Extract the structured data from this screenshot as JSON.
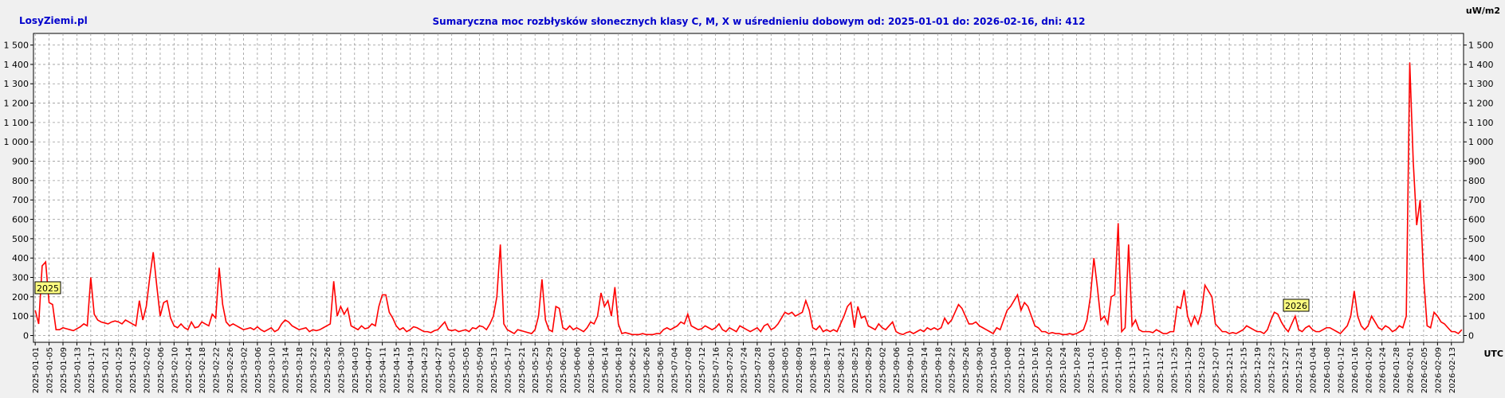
{
  "site": "LosyZiemi.pl",
  "chart_data": {
    "type": "line",
    "title": "Sumaryczna moc rozbłysków słonecznych klasy C, M, X w uśrednieniu dobowym od: 2025-01-01 do: 2026-02-16, dni: 412",
    "y_unit": "uW/m2",
    "x_unit": "UTC",
    "annotations": [
      "2025",
      "2026"
    ],
    "grid": true,
    "ylim": [
      -35,
      1560
    ],
    "yticks": [
      0,
      100,
      200,
      300,
      400,
      500,
      600,
      700,
      800,
      900,
      {
        "value": 1000,
        "label": "1 000"
      },
      {
        "value": 1100,
        "label": "1 100"
      },
      {
        "value": 1200,
        "label": "1 200"
      },
      {
        "value": 1300,
        "label": "1 300"
      },
      {
        "value": 1400,
        "label": "1 400"
      },
      {
        "value": 1500,
        "label": "1 500"
      }
    ],
    "categories": [
      "2025-01-01",
      null,
      null,
      null,
      "2025-01-05",
      null,
      null,
      null,
      "2025-01-09",
      null,
      null,
      null,
      "2025-01-13",
      null,
      null,
      null,
      "2025-01-17",
      null,
      null,
      null,
      "2025-01-21",
      null,
      null,
      null,
      "2025-01-25",
      null,
      null,
      null,
      "2025-01-29",
      null,
      null,
      null,
      "2025-02-02",
      null,
      null,
      null,
      "2025-02-06",
      null,
      null,
      null,
      "2025-02-10",
      null,
      null,
      null,
      "2025-02-14",
      null,
      null,
      null,
      "2025-02-18",
      null,
      null,
      null,
      "2025-02-22",
      null,
      null,
      null,
      "2025-02-26",
      null,
      null,
      null,
      "2025-03-02",
      null,
      null,
      null,
      "2025-03-06",
      null,
      null,
      null,
      "2025-03-10",
      null,
      null,
      null,
      "2025-03-14",
      null,
      null,
      null,
      "2025-03-18",
      null,
      null,
      null,
      "2025-03-22",
      null,
      null,
      null,
      "2025-03-26",
      null,
      null,
      null,
      "2025-03-30",
      null,
      null,
      null,
      "2025-04-03",
      null,
      null,
      null,
      "2025-04-07",
      null,
      null,
      null,
      "2025-04-11",
      null,
      null,
      null,
      "2025-04-15",
      null,
      null,
      null,
      "2025-04-19",
      null,
      null,
      null,
      "2025-04-23",
      null,
      null,
      null,
      "2025-04-27",
      null,
      null,
      null,
      "2025-05-01",
      null,
      null,
      null,
      "2025-05-05",
      null,
      null,
      null,
      "2025-05-09",
      null,
      null,
      null,
      "2025-05-13",
      null,
      null,
      null,
      "2025-05-17",
      null,
      null,
      null,
      "2025-05-21",
      null,
      null,
      null,
      "2025-05-25",
      null,
      null,
      null,
      "2025-05-29",
      null,
      null,
      null,
      "2025-06-02",
      null,
      null,
      null,
      "2025-06-06",
      null,
      null,
      null,
      "2025-06-10",
      null,
      null,
      null,
      "2025-06-14",
      null,
      null,
      null,
      "2025-06-18",
      null,
      null,
      null,
      "2025-06-22",
      null,
      null,
      null,
      "2025-06-26",
      null,
      null,
      null,
      "2025-06-30",
      null,
      null,
      null,
      "2025-07-04",
      null,
      null,
      null,
      "2025-07-08",
      null,
      null,
      null,
      "2025-07-12",
      null,
      null,
      null,
      "2025-07-16",
      null,
      null,
      null,
      "2025-07-20",
      null,
      null,
      null,
      "2025-07-24",
      null,
      null,
      null,
      "2025-07-28",
      null,
      null,
      null,
      "2025-08-01",
      null,
      null,
      null,
      "2025-08-05",
      null,
      null,
      null,
      "2025-08-09",
      null,
      null,
      null,
      "2025-08-13",
      null,
      null,
      null,
      "2025-08-17",
      null,
      null,
      null,
      "2025-08-21",
      null,
      null,
      null,
      "2025-08-25",
      null,
      null,
      null,
      "2025-08-29",
      null,
      null,
      null,
      "2025-09-02",
      null,
      null,
      null,
      "2025-09-06",
      null,
      null,
      null,
      "2025-09-10",
      null,
      null,
      null,
      "2025-09-14",
      null,
      null,
      null,
      "2025-09-18",
      null,
      null,
      null,
      "2025-09-22",
      null,
      null,
      null,
      "2025-09-26",
      null,
      null,
      null,
      "2025-09-30",
      null,
      null,
      null,
      "2025-10-04",
      null,
      null,
      null,
      "2025-10-08",
      null,
      null,
      null,
      "2025-10-12",
      null,
      null,
      null,
      "2025-10-16",
      null,
      null,
      null,
      "2025-10-20",
      null,
      null,
      null,
      "2025-10-24",
      null,
      null,
      null,
      "2025-10-28",
      null,
      null,
      null,
      "2025-11-01",
      null,
      null,
      null,
      "2025-11-05",
      null,
      null,
      null,
      "2025-11-09",
      null,
      null,
      null,
      "2025-11-13",
      null,
      null,
      null,
      "2025-11-17",
      null,
      null,
      null,
      "2025-11-21",
      null,
      null,
      null,
      "2025-11-25",
      null,
      null,
      null,
      "2025-11-29",
      null,
      null,
      null,
      "2025-12-03",
      null,
      null,
      null,
      "2025-12-07",
      null,
      null,
      null,
      "2025-12-11",
      null,
      null,
      null,
      "2025-12-15",
      null,
      null,
      null,
      "2025-12-19",
      null,
      null,
      null,
      "2025-12-23",
      null,
      null,
      null,
      "2025-12-27",
      null,
      null,
      null,
      "2025-12-31",
      null,
      null,
      null,
      "2026-01-04",
      null,
      null,
      null,
      "2026-01-08",
      null,
      null,
      null,
      "2026-01-12",
      null,
      null,
      null,
      "2026-01-16",
      null,
      null,
      null,
      "2026-01-20",
      null,
      null,
      null,
      "2026-01-24",
      null,
      null,
      null,
      "2026-01-28",
      null,
      null,
      null,
      "2026-02-01",
      null,
      null,
      null,
      "2026-02-05",
      null,
      null,
      null,
      "2026-02-09",
      null,
      null,
      null,
      "2026-02-13",
      null,
      null,
      null
    ],
    "series": [
      {
        "color": "#ff0000",
        "values": [
          130,
          60,
          360,
          380,
          170,
          160,
          30,
          30,
          40,
          35,
          30,
          25,
          35,
          45,
          60,
          50,
          300,
          110,
          80,
          70,
          65,
          60,
          70,
          75,
          70,
          60,
          80,
          70,
          60,
          50,
          180,
          80,
          150,
          300,
          430,
          260,
          100,
          170,
          180,
          90,
          50,
          40,
          60,
          40,
          30,
          70,
          40,
          45,
          70,
          60,
          50,
          110,
          90,
          350,
          160,
          70,
          50,
          60,
          50,
          40,
          30,
          35,
          40,
          30,
          45,
          30,
          20,
          30,
          40,
          20,
          30,
          60,
          80,
          70,
          50,
          40,
          30,
          35,
          40,
          20,
          30,
          25,
          30,
          40,
          50,
          60,
          280,
          100,
          150,
          110,
          140,
          50,
          40,
          30,
          50,
          35,
          40,
          60,
          50,
          150,
          210,
          210,
          120,
          90,
          50,
          30,
          40,
          20,
          30,
          45,
          40,
          30,
          20,
          20,
          15,
          25,
          30,
          50,
          70,
          30,
          25,
          30,
          20,
          25,
          30,
          20,
          40,
          35,
          50,
          45,
          30,
          60,
          100,
          200,
          470,
          60,
          30,
          20,
          10,
          30,
          25,
          20,
          15,
          10,
          30,
          100,
          290,
          80,
          30,
          20,
          150,
          140,
          40,
          30,
          50,
          30,
          40,
          30,
          20,
          40,
          70,
          60,
          100,
          220,
          150,
          180,
          100,
          250,
          60,
          10,
          15,
          10,
          5,
          5,
          5,
          10,
          5,
          5,
          5,
          10,
          10,
          30,
          40,
          30,
          40,
          50,
          70,
          60,
          110,
          50,
          40,
          30,
          35,
          50,
          40,
          30,
          40,
          60,
          30,
          20,
          40,
          30,
          20,
          50,
          40,
          30,
          20,
          30,
          40,
          20,
          50,
          60,
          30,
          40,
          60,
          90,
          120,
          110,
          120,
          100,
          110,
          120,
          180,
          130,
          40,
          30,
          50,
          20,
          30,
          20,
          30,
          20,
          60,
          100,
          150,
          170,
          40,
          150,
          90,
          100,
          50,
          40,
          30,
          60,
          40,
          30,
          50,
          70,
          20,
          10,
          5,
          15,
          20,
          10,
          20,
          30,
          20,
          40,
          30,
          40,
          30,
          40,
          90,
          60,
          80,
          120,
          160,
          140,
          100,
          60,
          60,
          70,
          50,
          40,
          30,
          20,
          10,
          40,
          30,
          80,
          130,
          150,
          180,
          210,
          130,
          170,
          150,
          100,
          50,
          40,
          20,
          20,
          10,
          15,
          10,
          10,
          5,
          5,
          10,
          5,
          10,
          20,
          30,
          80,
          200,
          400,
          250,
          80,
          100,
          60,
          200,
          210,
          580,
          20,
          40,
          470,
          50,
          80,
          30,
          20,
          20,
          20,
          15,
          30,
          20,
          10,
          10,
          20,
          20,
          150,
          140,
          235,
          100,
          50,
          100,
          60,
          120,
          260,
          230,
          200,
          60,
          40,
          20,
          20,
          10,
          15,
          10,
          20,
          30,
          50,
          40,
          30,
          20,
          20,
          10,
          30,
          80,
          120,
          110,
          70,
          40,
          20,
          60,
          100,
          30,
          20,
          40,
          50,
          30,
          20,
          20,
          30,
          40,
          40,
          30,
          20,
          10,
          30,
          50,
          100,
          230,
          100,
          50,
          30,
          50,
          100,
          70,
          40,
          30,
          50,
          40,
          20,
          30,
          50,
          40,
          100,
          1410,
          900,
          570,
          700,
          300,
          50,
          40,
          120,
          100,
          70,
          60,
          40,
          20,
          20,
          10,
          30
        ]
      }
    ]
  }
}
